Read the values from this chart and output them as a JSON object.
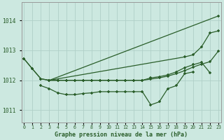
{
  "title": "Graphe pression niveau de la mer (hPa)",
  "bg_color": "#cce8e0",
  "grid_color": "#b0d0c8",
  "line_color": "#2a5e2a",
  "ylim": [
    1010.6,
    1014.6
  ],
  "yticks": [
    1011,
    1012,
    1013,
    1014
  ],
  "xlim": [
    -0.3,
    23.3
  ],
  "sA_x": [
    0,
    1,
    2,
    3,
    23
  ],
  "sA_y": [
    1012.72,
    1012.38,
    1012.05,
    1012.0,
    1014.15
  ],
  "sB_x": [
    0,
    1,
    2,
    3,
    19,
    20,
    21,
    22,
    23
  ],
  "sB_y": [
    1012.72,
    1012.38,
    1012.05,
    1012.0,
    1012.78,
    1012.85,
    1013.12,
    1013.58,
    1013.65
  ],
  "sC_x": [
    3,
    4,
    5,
    6,
    7,
    8,
    9,
    10,
    11,
    12,
    13,
    14,
    15,
    16,
    17,
    18,
    19,
    20,
    21,
    22
  ],
  "sC_y": [
    1012.0,
    1012.0,
    1012.0,
    1012.0,
    1012.0,
    1012.0,
    1012.0,
    1012.0,
    1012.0,
    1012.0,
    1012.0,
    1012.0,
    1012.08,
    1012.12,
    1012.18,
    1012.28,
    1012.42,
    1012.52,
    1012.6,
    1012.25
  ],
  "sD_x": [
    3,
    4,
    5,
    6,
    7,
    8,
    9,
    10,
    11,
    12,
    13,
    14,
    15,
    16,
    17,
    18,
    19,
    20,
    21,
    22,
    23
  ],
  "sD_y": [
    1012.0,
    1012.0,
    1012.0,
    1012.0,
    1012.0,
    1012.0,
    1012.0,
    1012.0,
    1012.0,
    1012.0,
    1012.0,
    1012.0,
    1012.04,
    1012.08,
    1012.14,
    1012.22,
    1012.32,
    1012.44,
    1012.54,
    1012.62,
    1012.98
  ],
  "sE_x": [
    2,
    3,
    4,
    5,
    6,
    7,
    8,
    9,
    10,
    11,
    12,
    13,
    14,
    15,
    16,
    17,
    18,
    19,
    20
  ],
  "sE_y": [
    1011.82,
    1011.72,
    1011.58,
    1011.52,
    1011.52,
    1011.56,
    1011.58,
    1011.62,
    1011.62,
    1011.62,
    1011.62,
    1011.62,
    1011.62,
    1011.18,
    1011.28,
    1011.72,
    1011.82,
    1012.22,
    1012.28
  ]
}
